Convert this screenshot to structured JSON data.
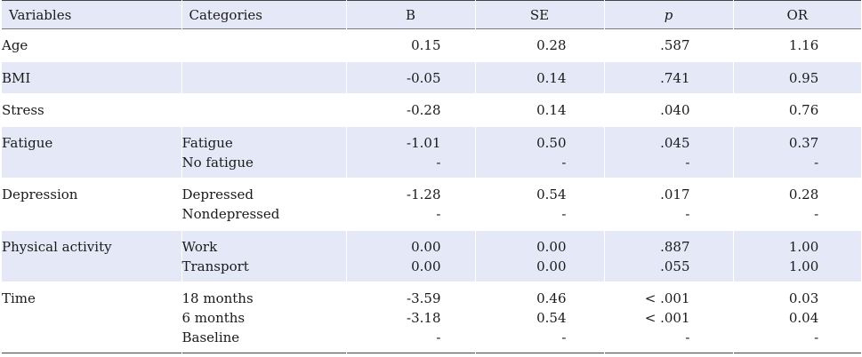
{
  "table": {
    "headers": {
      "variables": "Variables",
      "categories": "Categories",
      "b": "B",
      "se": "SE",
      "p": "p",
      "or": "OR"
    },
    "rows": [
      {
        "variable": "Age",
        "categories": [
          ""
        ],
        "b": [
          "0.15"
        ],
        "se": [
          "0.28"
        ],
        "p": [
          ".587"
        ],
        "or": [
          "1.16"
        ]
      },
      {
        "variable": "BMI",
        "categories": [
          ""
        ],
        "b": [
          "-0.05"
        ],
        "se": [
          "0.14"
        ],
        "p": [
          ".741"
        ],
        "or": [
          "0.95"
        ]
      },
      {
        "variable": "Stress",
        "categories": [
          ""
        ],
        "b": [
          "-0.28"
        ],
        "se": [
          "0.14"
        ],
        "p": [
          ".040"
        ],
        "or": [
          "0.76"
        ]
      },
      {
        "variable": "Fatigue",
        "categories": [
          "Fatigue",
          "No fatigue"
        ],
        "b": [
          "-1.01",
          "-"
        ],
        "se": [
          "0.50",
          "-"
        ],
        "p": [
          ".045",
          "-"
        ],
        "or": [
          "0.37",
          "-"
        ]
      },
      {
        "variable": "Depression",
        "categories": [
          "Depressed",
          "Nondepressed"
        ],
        "b": [
          "-1.28",
          "-"
        ],
        "se": [
          "0.54",
          "-"
        ],
        "p": [
          ".017",
          "-"
        ],
        "or": [
          "0.28",
          "-"
        ]
      },
      {
        "variable": "Physical activity",
        "categories": [
          "Work",
          "Transport"
        ],
        "b": [
          "0.00",
          "0.00"
        ],
        "se": [
          "0.00",
          "0.00"
        ],
        "p": [
          ".887",
          ".055"
        ],
        "or": [
          "1.00",
          "1.00"
        ]
      },
      {
        "variable": "Time",
        "categories": [
          "18 months",
          "6 months",
          "Baseline"
        ],
        "b": [
          "-3.59",
          "-3.18",
          "-"
        ],
        "se": [
          "0.46",
          "0.54",
          "-"
        ],
        "p": [
          "< .001",
          "< .001",
          "-"
        ],
        "or": [
          "0.03",
          "0.04",
          "-"
        ]
      }
    ]
  }
}
